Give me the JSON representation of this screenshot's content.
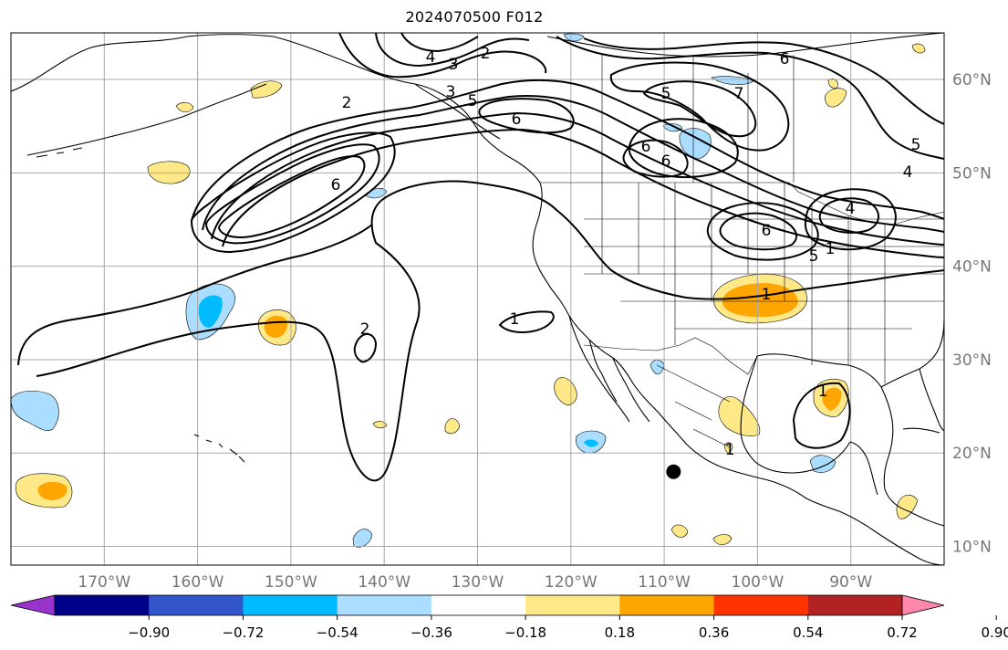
{
  "title": "2024070500 F012",
  "map": {
    "projection": "cylindrical",
    "lon_range": [
      -180,
      -80
    ],
    "lat_range": [
      8,
      65
    ],
    "lon_ticks": [
      "170°W",
      "160°W",
      "150°W",
      "140°W",
      "130°W",
      "120°W",
      "110°W",
      "100°W",
      "90°W"
    ],
    "lat_ticks": [
      "10°N",
      "20°N",
      "30°N",
      "40°N",
      "50°N",
      "60°N"
    ],
    "grid": true,
    "contour_labels": [
      "4",
      "3",
      "2",
      "2",
      "3",
      "5",
      "6",
      "6",
      "7",
      "5",
      "4",
      "5",
      "6",
      "6",
      "6",
      "6",
      "4",
      "5",
      "1",
      "1",
      "1",
      "2",
      "1",
      "1"
    ],
    "storm_marker": {
      "lon": -109,
      "lat": 18
    }
  },
  "colorbar": {
    "ticks": [
      "−0.90",
      "−0.72",
      "−0.54",
      "−0.36",
      "−0.18",
      "0.18",
      "0.36",
      "0.54",
      "0.72",
      "0.90"
    ],
    "colors": [
      "#9933cc",
      "#000088",
      "#3355cc",
      "#00bbff",
      "#aaddff",
      "#ffffff",
      "#ffe888",
      "#ffa500",
      "#ff3300",
      "#b22222",
      "#ff88aa"
    ],
    "extend": "both"
  }
}
